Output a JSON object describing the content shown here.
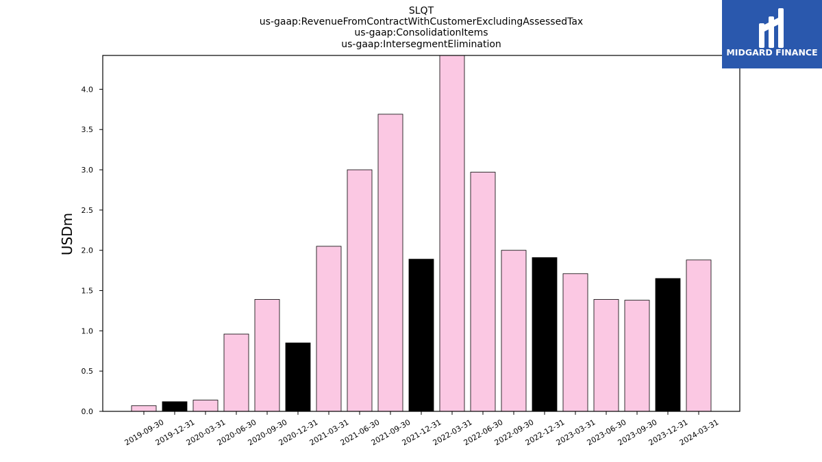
{
  "chart_data": {
    "type": "bar",
    "title_lines": [
      "SLQT",
      "us-gaap:RevenueFromContractWithCustomerExcludingAssessedTax",
      "us-gaap:ConsolidationItems",
      "us-gaap:IntersegmentElimination"
    ],
    "xlabel": "",
    "ylabel": "USDm",
    "ylim": [
      0,
      4.42
    ],
    "yticks": [
      "0.0",
      "0.5",
      "1.0",
      "1.5",
      "2.0",
      "2.5",
      "3.0",
      "3.5",
      "4.0"
    ],
    "grid": false,
    "categories": [
      "2019-09-30",
      "2019-12-31",
      "2020-03-31",
      "2020-06-30",
      "2020-09-30",
      "2020-12-31",
      "2021-03-31",
      "2021-06-30",
      "2021-09-30",
      "2021-12-31",
      "2022-03-31",
      "2022-06-30",
      "2022-09-30",
      "2022-12-31",
      "2023-03-31",
      "2023-06-30",
      "2023-09-30",
      "2023-12-31",
      "2024-03-31"
    ],
    "values": [
      0.07,
      0.12,
      0.14,
      0.96,
      1.39,
      0.85,
      2.05,
      3.0,
      3.69,
      1.89,
      4.42,
      2.97,
      2.0,
      1.91,
      1.71,
      1.39,
      1.38,
      1.65,
      1.88
    ],
    "bar_colors": [
      "#fbc8e3",
      "#000000",
      "#fbc8e3",
      "#fbc8e3",
      "#fbc8e3",
      "#000000",
      "#fbc8e3",
      "#fbc8e3",
      "#fbc8e3",
      "#000000",
      "#fbc8e3",
      "#fbc8e3",
      "#fbc8e3",
      "#000000",
      "#fbc8e3",
      "#fbc8e3",
      "#fbc8e3",
      "#000000",
      "#fbc8e3"
    ]
  },
  "logo": {
    "text": "MIDGARD FINANCE",
    "background": "#2a58ad"
  }
}
